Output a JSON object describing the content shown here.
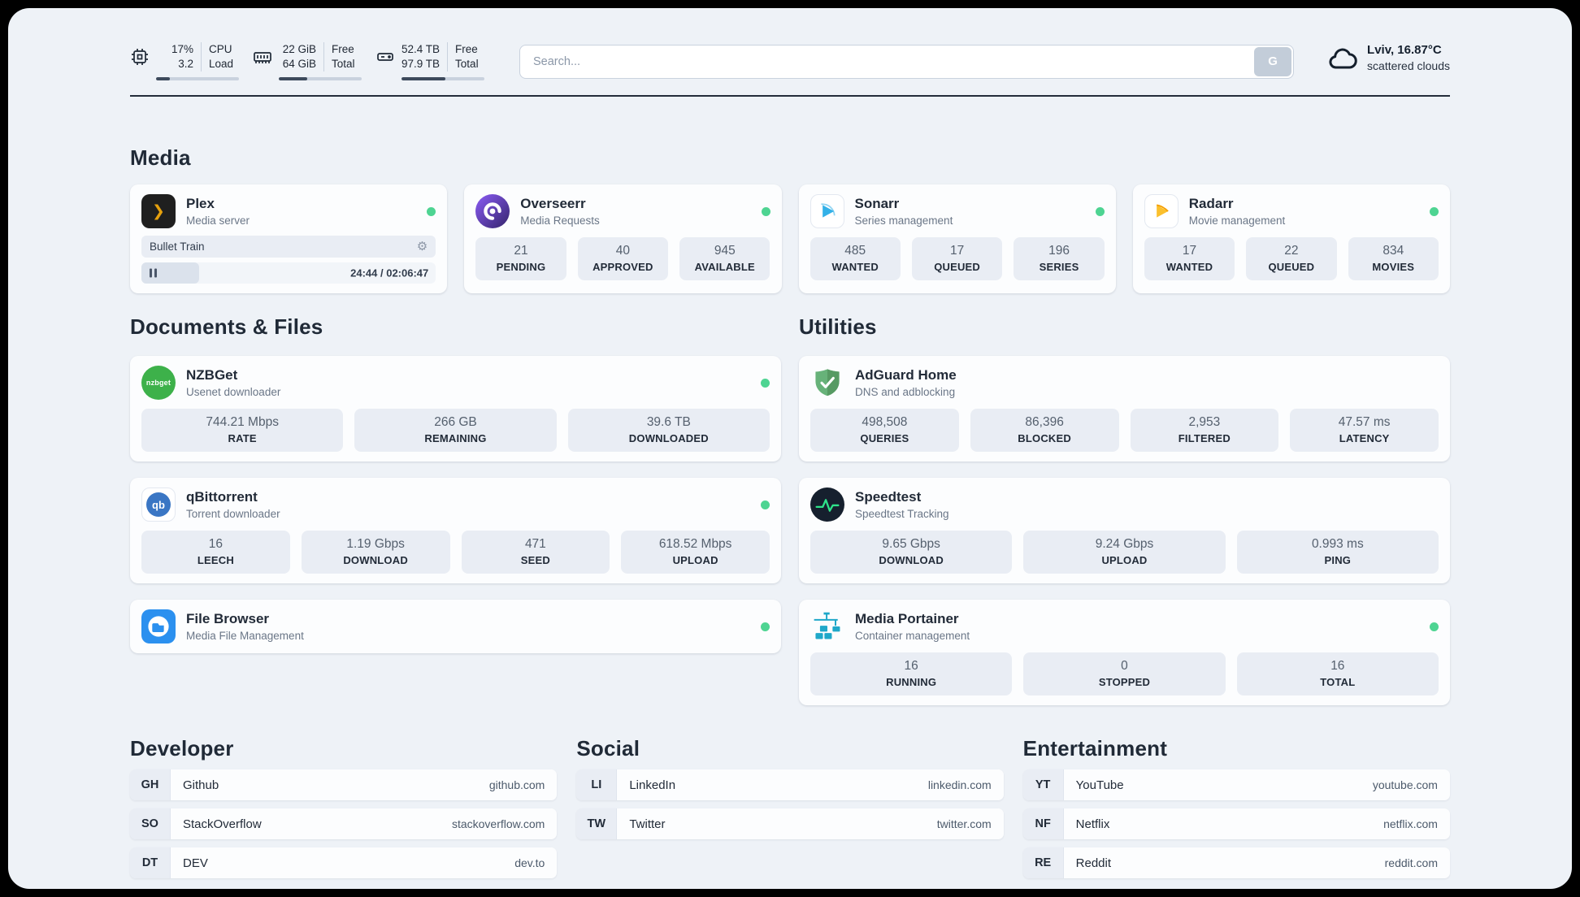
{
  "header": {
    "cpu": {
      "value_top": "17%",
      "value_bottom": "3.2",
      "label_top": "CPU",
      "label_bottom": "Load",
      "bar_width": "17%"
    },
    "ram": {
      "value_top": "22 GiB",
      "value_bottom": "64 GiB",
      "label_top": "Free",
      "label_bottom": "Total",
      "bar_width": "34%"
    },
    "disk": {
      "value_top": "52.4 TB",
      "value_bottom": "97.9 TB",
      "label_top": "Free",
      "label_bottom": "Total",
      "bar_width": "53%"
    },
    "search": {
      "placeholder": "Search...",
      "button_label": "G"
    },
    "weather": {
      "location": "Lviv, 16.87°C",
      "condition": "scattered clouds"
    }
  },
  "icons": {
    "gear": "⚙",
    "plex_arrow": "❯",
    "nzbget_label": "nzbget",
    "qbittorrent_label": "qb"
  },
  "media": {
    "title": "Media",
    "plex": {
      "name": "Plex",
      "subtitle": "Media server",
      "now_playing": "Bullet Train",
      "time": "24:44 / 02:06:47",
      "progress": "19.5%"
    },
    "overseerr": {
      "name": "Overseerr",
      "subtitle": "Media Requests",
      "stats": [
        {
          "value": "21",
          "label": "PENDING"
        },
        {
          "value": "40",
          "label": "APPROVED"
        },
        {
          "value": "945",
          "label": "AVAILABLE"
        }
      ]
    },
    "sonarr": {
      "name": "Sonarr",
      "subtitle": "Series management",
      "stats": [
        {
          "value": "485",
          "label": "WANTED"
        },
        {
          "value": "17",
          "label": "QUEUED"
        },
        {
          "value": "196",
          "label": "SERIES"
        }
      ]
    },
    "radarr": {
      "name": "Radarr",
      "subtitle": "Movie management",
      "stats": [
        {
          "value": "17",
          "label": "WANTED"
        },
        {
          "value": "22",
          "label": "QUEUED"
        },
        {
          "value": "834",
          "label": "MOVIES"
        }
      ]
    }
  },
  "documents": {
    "title": "Documents & Files",
    "nzbget": {
      "name": "NZBGet",
      "subtitle": "Usenet downloader",
      "stats": [
        {
          "value": "744.21 Mbps",
          "label": "RATE"
        },
        {
          "value": "266 GB",
          "label": "REMAINING"
        },
        {
          "value": "39.6 TB",
          "label": "DOWNLOADED"
        }
      ]
    },
    "qbittorrent": {
      "name": "qBittorrent",
      "subtitle": "Torrent downloader",
      "stats": [
        {
          "value": "16",
          "label": "LEECH"
        },
        {
          "value": "1.19 Gbps",
          "label": "DOWNLOAD"
        },
        {
          "value": "471",
          "label": "SEED"
        },
        {
          "value": "618.52 Mbps",
          "label": "UPLOAD"
        }
      ]
    },
    "filebrowser": {
      "name": "File Browser",
      "subtitle": "Media File Management"
    }
  },
  "utilities": {
    "title": "Utilities",
    "adguard": {
      "name": "AdGuard Home",
      "subtitle": "DNS and adblocking",
      "stats": [
        {
          "value": "498,508",
          "label": "QUERIES"
        },
        {
          "value": "86,396",
          "label": "BLOCKED"
        },
        {
          "value": "2,953",
          "label": "FILTERED"
        },
        {
          "value": "47.57 ms",
          "label": "LATENCY"
        }
      ]
    },
    "speedtest": {
      "name": "Speedtest",
      "subtitle": "Speedtest Tracking",
      "stats": [
        {
          "value": "9.65 Gbps",
          "label": "DOWNLOAD"
        },
        {
          "value": "9.24 Gbps",
          "label": "UPLOAD"
        },
        {
          "value": "0.993 ms",
          "label": "PING"
        }
      ]
    },
    "portainer": {
      "name": "Media Portainer",
      "subtitle": "Container management",
      "stats": [
        {
          "value": "16",
          "label": "RUNNING"
        },
        {
          "value": "0",
          "label": "STOPPED"
        },
        {
          "value": "16",
          "label": "TOTAL"
        }
      ]
    }
  },
  "bookmarks": {
    "developer": {
      "title": "Developer",
      "items": [
        {
          "abbr": "GH",
          "name": "Github",
          "url": "github.com"
        },
        {
          "abbr": "SO",
          "name": "StackOverflow",
          "url": "stackoverflow.com"
        },
        {
          "abbr": "DT",
          "name": "DEV",
          "url": "dev.to"
        }
      ]
    },
    "social": {
      "title": "Social",
      "items": [
        {
          "abbr": "LI",
          "name": "LinkedIn",
          "url": "linkedin.com"
        },
        {
          "abbr": "TW",
          "name": "Twitter",
          "url": "twitter.com"
        }
      ]
    },
    "entertainment": {
      "title": "Entertainment",
      "items": [
        {
          "abbr": "YT",
          "name": "YouTube",
          "url": "youtube.com"
        },
        {
          "abbr": "NF",
          "name": "Netflix",
          "url": "netflix.com"
        },
        {
          "abbr": "RE",
          "name": "Reddit",
          "url": "reddit.com"
        }
      ]
    }
  }
}
